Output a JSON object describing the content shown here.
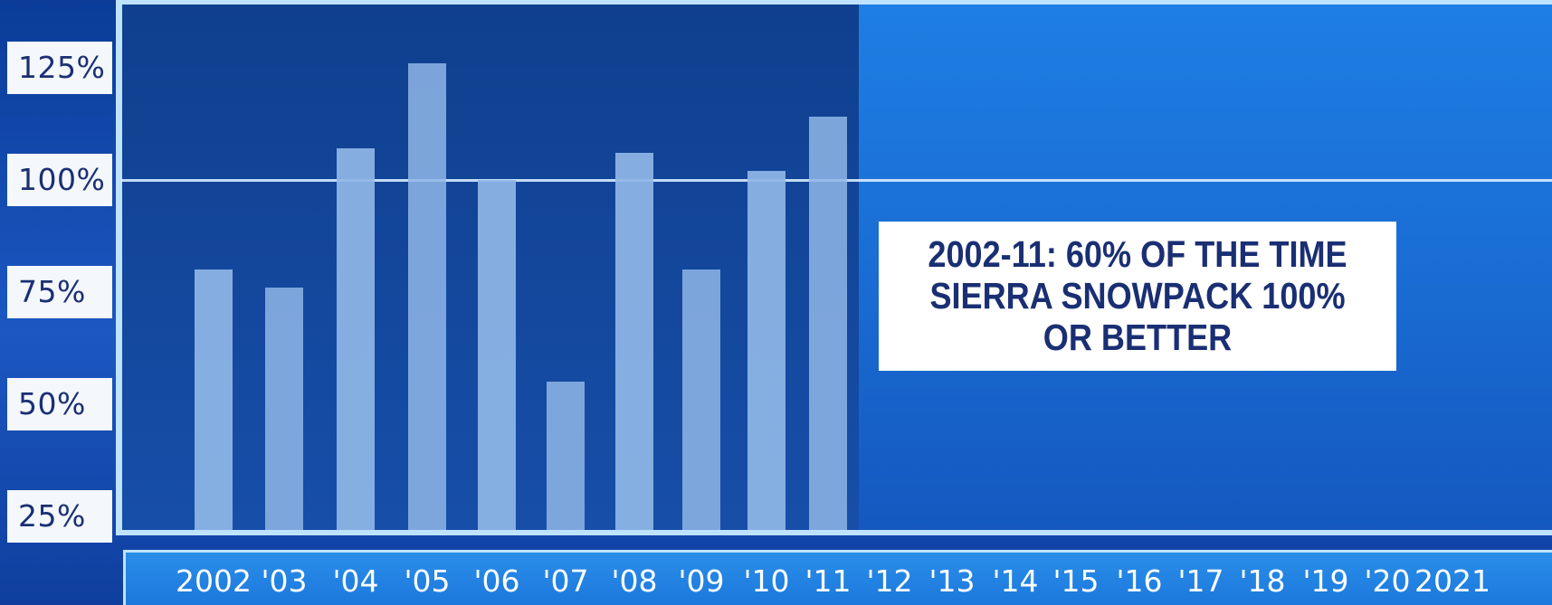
{
  "chart_data": {
    "type": "bar",
    "categories": [
      "2002",
      "'03",
      "'04",
      "'05",
      "'06",
      "'07",
      "'08",
      "'09",
      "'10",
      "'11",
      "'12",
      "'13",
      "'14",
      "'15",
      "'16",
      "'17",
      "'18",
      "'19",
      "'20",
      "2021"
    ],
    "values": [
      80,
      76,
      107,
      126,
      100,
      55,
      106,
      80,
      102,
      114,
      null,
      null,
      null,
      null,
      null,
      null,
      null,
      null,
      null,
      null
    ],
    "y_ticks": [
      "125%",
      "100%",
      "75%",
      "50%",
      "25%"
    ],
    "y_tick_values": [
      125,
      100,
      75,
      50,
      25
    ],
    "ylim": [
      22,
      139
    ],
    "reference_line": 100,
    "annotation": [
      "2002-11: 60% OF THE TIME",
      "SIERRA SNOWPACK 100%",
      "OR BETTER"
    ],
    "highlight_range": [
      "2002",
      "'11"
    ],
    "colors": {
      "bar": "#8fb6e6",
      "highlight_panel": "#13479c",
      "background": "#1a6fd6",
      "label_box": "#f4f7fb",
      "label_text": "#1a2f73"
    },
    "legend": "none",
    "grid": "single reference line at 100%"
  }
}
